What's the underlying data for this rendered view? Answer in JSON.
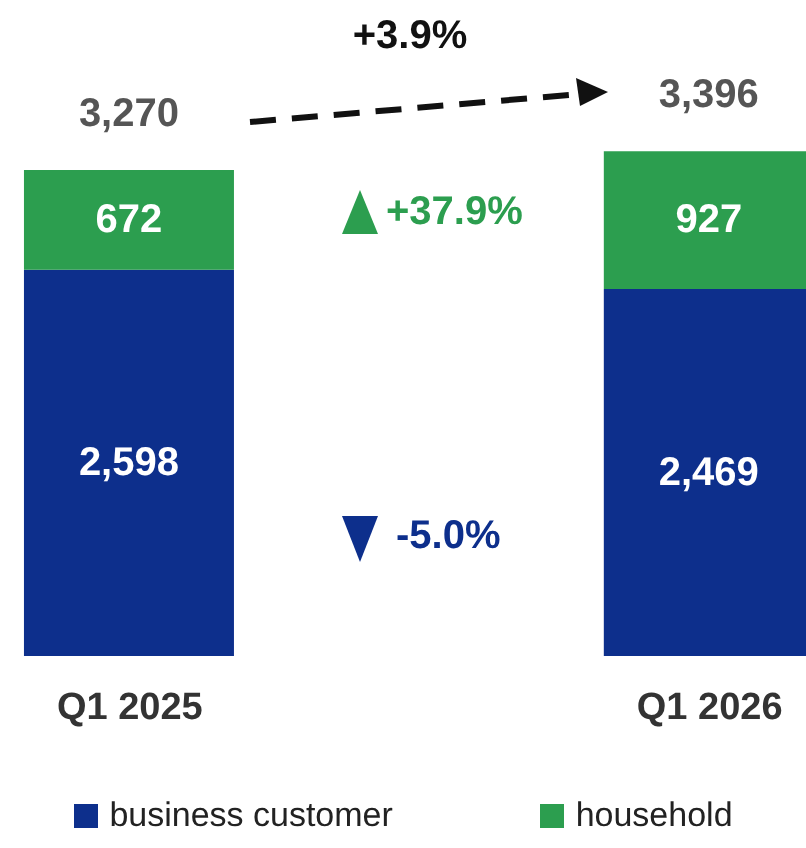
{
  "chart_data": {
    "type": "bar",
    "stacked": true,
    "categories": [
      "Q1 2025",
      "Q1 2026"
    ],
    "series": [
      {
        "name": "business customer",
        "color": "#0d2f8c",
        "values": [
          2598,
          2469
        ],
        "value_labels": [
          "2,598",
          "2,469"
        ]
      },
      {
        "name": "household",
        "color": "#2c9e4f",
        "values": [
          672,
          927
        ],
        "value_labels": [
          "672",
          "927"
        ]
      }
    ],
    "totals": [
      "3,270",
      "3,396"
    ],
    "annotations": [
      "+3.9%",
      "+37.9%",
      "-5.0%"
    ],
    "tick_labels": "x",
    "legend": "bottom"
  }
}
